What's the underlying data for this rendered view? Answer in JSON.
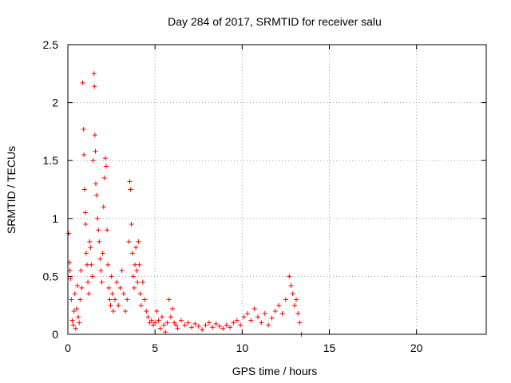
{
  "chart_data": {
    "type": "scatter",
    "title": "Day 284 of 2017, SRMTID for receiver salu",
    "xlabel": "GPS time / hours",
    "ylabel": "SRMTID / TECUs",
    "xlim": [
      0,
      24
    ],
    "ylim": [
      0,
      2.5
    ],
    "xticks": [
      0,
      5,
      10,
      15,
      20
    ],
    "xtick_labels": [
      "0",
      "5",
      "10",
      "15",
      "20"
    ],
    "yticks": [
      0,
      0.5,
      1,
      1.5,
      2,
      2.5
    ],
    "ytick_labels": [
      "0",
      "0.5",
      "1",
      "1.5",
      "2",
      "2.5"
    ],
    "grid": true,
    "marker": "plus",
    "series": [
      {
        "name": "SRMTID",
        "color": "#ff0000",
        "points": [
          [
            0.05,
            0.87
          ],
          [
            0.1,
            0.62
          ],
          [
            0.12,
            0.55
          ],
          [
            0.15,
            0.48
          ],
          [
            0.2,
            0.3
          ],
          [
            0.25,
            0.12
          ],
          [
            0.3,
            0.08
          ],
          [
            0.35,
            0.2
          ],
          [
            0.4,
            0.35
          ],
          [
            0.45,
            0.05
          ],
          [
            0.5,
            0.22
          ],
          [
            0.55,
            0.42
          ],
          [
            0.6,
            0.15
          ],
          [
            0.65,
            0.1
          ],
          [
            0.7,
            0.3
          ],
          [
            0.75,
            0.55
          ],
          [
            0.8,
            0.4
          ],
          [
            0.85,
            2.17
          ],
          [
            0.9,
            1.77
          ],
          [
            0.92,
            1.55
          ],
          [
            0.95,
            1.25
          ],
          [
            1.0,
            1.05
          ],
          [
            1.02,
            0.95
          ],
          [
            1.05,
            0.7
          ],
          [
            1.1,
            0.6
          ],
          [
            1.15,
            0.45
          ],
          [
            1.2,
            0.35
          ],
          [
            1.25,
            0.8
          ],
          [
            1.3,
            0.75
          ],
          [
            1.35,
            0.6
          ],
          [
            1.4,
            0.5
          ],
          [
            1.45,
            1.5
          ],
          [
            1.5,
            2.25
          ],
          [
            1.52,
            2.14
          ],
          [
            1.55,
            1.72
          ],
          [
            1.58,
            1.58
          ],
          [
            1.6,
            1.3
          ],
          [
            1.65,
            1.2
          ],
          [
            1.7,
            1.0
          ],
          [
            1.75,
            0.9
          ],
          [
            1.8,
            0.8
          ],
          [
            1.85,
            0.65
          ],
          [
            1.9,
            0.55
          ],
          [
            1.95,
            0.45
          ],
          [
            2.0,
            0.7
          ],
          [
            2.05,
            1.1
          ],
          [
            2.1,
            1.35
          ],
          [
            2.15,
            1.52
          ],
          [
            2.2,
            1.45
          ],
          [
            2.25,
            0.9
          ],
          [
            2.3,
            0.6
          ],
          [
            2.35,
            0.4
          ],
          [
            2.4,
            0.3
          ],
          [
            2.45,
            0.25
          ],
          [
            2.5,
            0.5
          ],
          [
            2.55,
            0.35
          ],
          [
            2.6,
            0.2
          ],
          [
            2.7,
            0.3
          ],
          [
            2.8,
            0.45
          ],
          [
            2.9,
            0.25
          ],
          [
            3.0,
            0.4
          ],
          [
            3.1,
            0.55
          ],
          [
            3.2,
            0.35
          ],
          [
            3.3,
            0.2
          ],
          [
            3.4,
            0.3
          ],
          [
            3.5,
            0.8
          ],
          [
            3.55,
            1.32
          ],
          [
            3.6,
            1.25
          ],
          [
            3.65,
            0.95
          ],
          [
            3.7,
            0.7
          ],
          [
            3.75,
            0.5
          ],
          [
            3.8,
            0.4
          ],
          [
            3.85,
            0.6
          ],
          [
            3.9,
            0.75
          ],
          [
            3.95,
            0.55
          ],
          [
            4.0,
            0.45
          ],
          [
            4.05,
            0.8
          ],
          [
            4.1,
            0.6
          ],
          [
            4.15,
            0.35
          ],
          [
            4.2,
            0.25
          ],
          [
            4.3,
            0.45
          ],
          [
            4.4,
            0.3
          ],
          [
            4.5,
            0.2
          ],
          [
            4.6,
            0.15
          ],
          [
            4.7,
            0.1
          ],
          [
            4.8,
            0.12
          ],
          [
            4.9,
            0.08
          ],
          [
            5.0,
            0.1
          ],
          [
            5.1,
            0.2
          ],
          [
            5.2,
            0.12
          ],
          [
            5.3,
            0.05
          ],
          [
            5.4,
            0.15
          ],
          [
            5.5,
            0.08
          ],
          [
            5.6,
            0.02
          ],
          [
            5.7,
            0.1
          ],
          [
            5.8,
            0.3
          ],
          [
            5.9,
            0.15
          ],
          [
            6.0,
            0.22
          ],
          [
            6.1,
            0.1
          ],
          [
            6.2,
            0.08
          ],
          [
            6.3,
            0.05
          ],
          [
            6.5,
            0.12
          ],
          [
            6.7,
            0.08
          ],
          [
            6.9,
            0.1
          ],
          [
            7.1,
            0.06
          ],
          [
            7.3,
            0.09
          ],
          [
            7.5,
            0.07
          ],
          [
            7.7,
            0.04
          ],
          [
            7.9,
            0.08
          ],
          [
            8.1,
            0.1
          ],
          [
            8.3,
            0.06
          ],
          [
            8.5,
            0.09
          ],
          [
            8.7,
            0.07
          ],
          [
            8.9,
            0.05
          ],
          [
            9.1,
            0.08
          ],
          [
            9.3,
            0.06
          ],
          [
            9.5,
            0.1
          ],
          [
            9.7,
            0.12
          ],
          [
            9.9,
            0.08
          ],
          [
            10.1,
            0.15
          ],
          [
            10.3,
            0.18
          ],
          [
            10.5,
            0.12
          ],
          [
            10.7,
            0.22
          ],
          [
            10.9,
            0.15
          ],
          [
            11.1,
            0.1
          ],
          [
            11.3,
            0.18
          ],
          [
            11.5,
            0.08
          ],
          [
            11.7,
            0.14
          ],
          [
            11.9,
            0.2
          ],
          [
            12.1,
            0.25
          ],
          [
            12.3,
            0.18
          ],
          [
            12.5,
            0.3
          ],
          [
            12.7,
            0.5
          ],
          [
            12.8,
            0.42
          ],
          [
            12.9,
            0.35
          ],
          [
            13.0,
            0.25
          ],
          [
            13.1,
            0.3
          ],
          [
            13.2,
            0.18
          ],
          [
            13.3,
            0.1
          ],
          [
            13.4,
            0.0
          ]
        ]
      }
    ]
  }
}
